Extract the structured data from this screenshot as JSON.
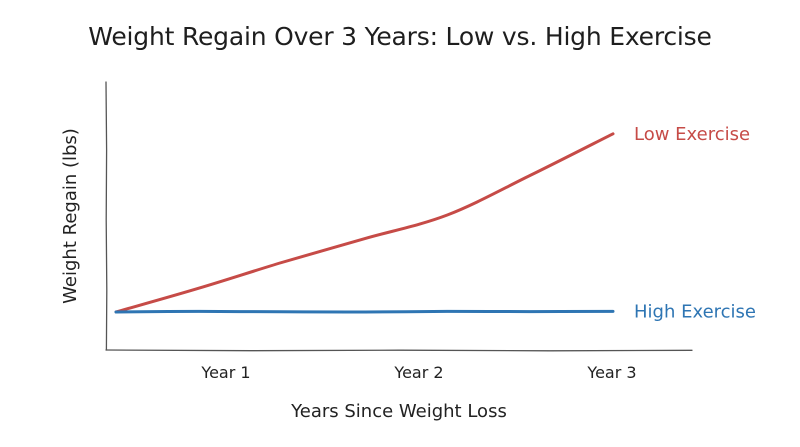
{
  "chart_data": {
    "type": "line",
    "title": "Weight Regain Over 3 Years: Low vs. High Exercise",
    "xlabel": "Years Since Weight Loss",
    "ylabel": "Weight Regain (lbs)",
    "categories": [
      "Year 1",
      "Year 2",
      "Year 3"
    ],
    "x": [
      0,
      0.5,
      1,
      1.5,
      2,
      2.5,
      3
    ],
    "xlim": [
      0,
      3
    ],
    "ylim": [
      0,
      1
    ],
    "grid": false,
    "legend": "inline-right",
    "series": [
      {
        "name": "Low Exercise",
        "color": "#c64b47",
        "values": [
          0.0,
          0.12,
          0.25,
          0.37,
          0.49,
          0.69,
          0.9
        ]
      },
      {
        "name": "High Exercise",
        "color": "#2e75b3",
        "values": [
          0.0,
          0.003,
          0.001,
          0.0,
          0.003,
          0.002,
          0.003
        ]
      }
    ]
  }
}
